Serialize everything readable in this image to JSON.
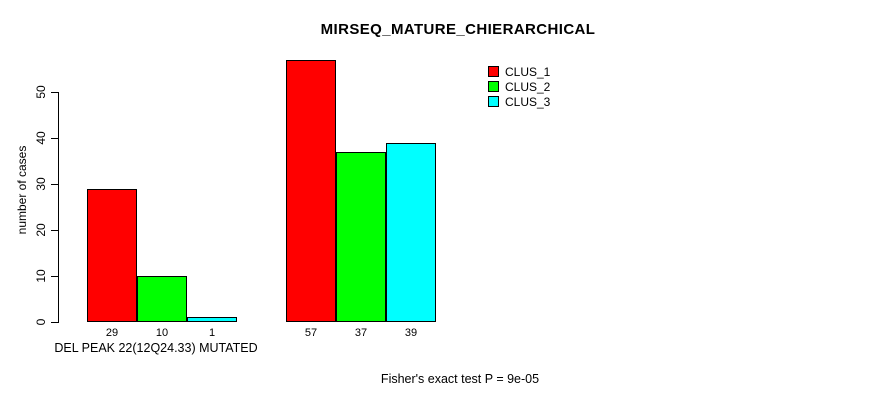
{
  "title": "MIRSEQ_MATURE_CHIERARCHICAL",
  "footer": "Fisher's exact test P = 9e-05",
  "colors": {
    "background": "#FFFFFF",
    "axis": "#000000",
    "text": "#000000",
    "series": [
      "#FF0000",
      "#00FF00",
      "#00FFFF"
    ]
  },
  "chart_data": {
    "type": "bar",
    "title": "MIRSEQ_MATURE_CHIERARCHICAL",
    "xlabel": "",
    "ylabel": "number of cases",
    "ylim": [
      0,
      50
    ],
    "yticks": [
      0,
      10,
      20,
      30,
      40,
      50
    ],
    "grid": false,
    "legend_position": "top-right",
    "categories": [
      "DEL PEAK 22(12Q24.33) MUTATED",
      ""
    ],
    "series": [
      {
        "name": "CLUS_1",
        "color": "#FF0000",
        "values": [
          29,
          57
        ]
      },
      {
        "name": "CLUS_2",
        "color": "#00FF00",
        "values": [
          10,
          37
        ]
      },
      {
        "name": "CLUS_3",
        "color": "#00FFFF",
        "values": [
          1,
          39
        ]
      }
    ],
    "bar_value_labels": [
      [
        29,
        10,
        1
      ],
      [
        57,
        37,
        39
      ]
    ],
    "annotation": "Fisher's exact test P = 9e-05"
  }
}
